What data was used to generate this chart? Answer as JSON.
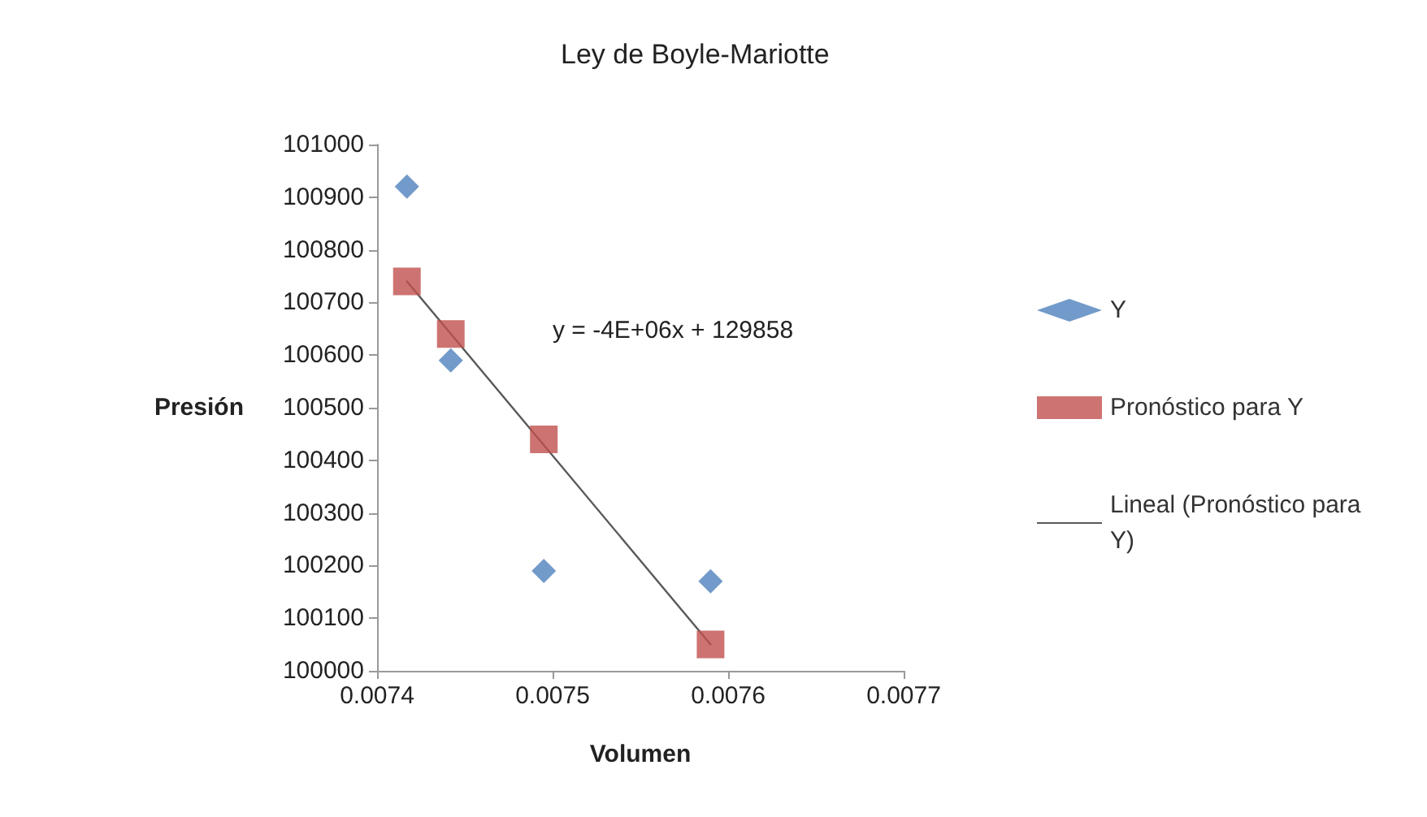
{
  "chart_data": {
    "type": "scatter",
    "title": "Ley de Boyle-Mariotte",
    "xlabel": "Volumen",
    "ylabel": "Presión",
    "annotations": [
      "y = -4E+06x + 129858"
    ],
    "series": [
      {
        "name": "Y",
        "color": "#4f81bd",
        "marker": "diamond",
        "x": [
          0.007417,
          0.007442,
          0.007495,
          0.00759
        ],
        "values": [
          100920,
          100590,
          100190,
          100170
        ]
      },
      {
        "name": "Pronóstico para Y",
        "color": "#c0504d",
        "marker": "square",
        "x": [
          0.007417,
          0.007442,
          0.007495,
          0.00759
        ],
        "values": [
          100740,
          100640,
          100440,
          100050
        ]
      },
      {
        "name": "Lineal (Pronóstico para Y)",
        "type": "line",
        "color": "#595959",
        "marker": "none",
        "line_style": "solid",
        "x": [
          0.007417,
          0.00759
        ],
        "values": [
          100740,
          100050
        ]
      }
    ],
    "xlim": [
      0.0074,
      0.0077
    ],
    "xticks": [
      0.0074,
      0.0075,
      0.0076,
      0.0077
    ],
    "ylim": [
      100000,
      101000
    ],
    "yticks": [
      100000,
      100100,
      100200,
      100300,
      100400,
      100500,
      100600,
      100700,
      100800,
      100900,
      101000
    ],
    "grid": false,
    "legend": "right"
  }
}
